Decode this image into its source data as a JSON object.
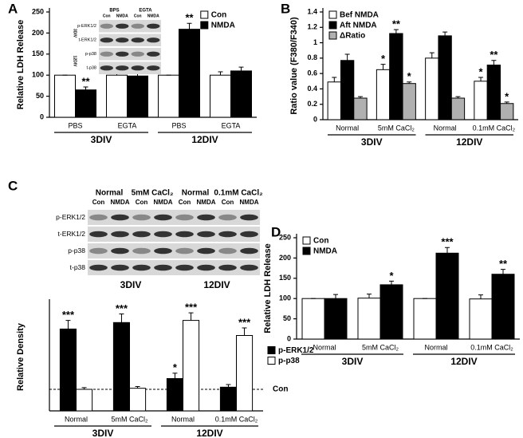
{
  "chart_data": [
    {
      "panel": "A",
      "type": "bar",
      "y_label": "Relative LDH Release",
      "categories": [
        "PBS",
        "EGTA",
        "PBS",
        "EGTA"
      ],
      "group_labels": [
        "3DIV",
        "12DIV"
      ],
      "series": [
        {
          "name": "Con",
          "color": "#ffffff",
          "values": [
            100,
            100,
            100,
            100
          ],
          "errors": [
            0,
            8,
            0,
            8
          ],
          "stars": [
            null,
            null,
            null,
            null
          ]
        },
        {
          "name": "NMDA",
          "color": "#000000",
          "values": [
            65,
            98,
            209,
            110
          ],
          "errors": [
            7,
            8,
            14,
            9
          ],
          "stars": [
            "**",
            null,
            "**",
            null
          ]
        }
      ],
      "ylim": [
        0,
        250
      ],
      "yticks": [
        0,
        50,
        100,
        150,
        200,
        250
      ],
      "legend": "upper right",
      "blot": {
        "column_headers": [
          "BPS",
          "EGTA"
        ],
        "lane_labels": [
          "Con",
          "NMDA",
          "Con",
          "NMDA"
        ],
        "row_labels": [
          "p-ERK1/2",
          "t-ERK1/2",
          "p-p38",
          "t-p38"
        ],
        "side_labels": [
          "3DIV",
          "12DIV"
        ]
      }
    },
    {
      "panel": "B",
      "type": "bar",
      "y_label": "Ratio value (F380/F340)",
      "categories": [
        "Normal",
        "5mM CaCl₂",
        "Normal",
        "0.1mM CaCl₂"
      ],
      "group_labels": [
        "3DIV",
        "12DIV"
      ],
      "series": [
        {
          "name": "Bef NMDA",
          "color": "#ffffff",
          "values": [
            0.49,
            0.65,
            0.8,
            0.5
          ],
          "errors": [
            0.06,
            0.07,
            0.07,
            0.05
          ],
          "stars": [
            null,
            "*",
            null,
            "*"
          ]
        },
        {
          "name": "Aft NMDA",
          "color": "#000000",
          "values": [
            0.77,
            1.12,
            1.09,
            0.71
          ],
          "errors": [
            0.08,
            0.05,
            0.05,
            0.06
          ],
          "stars": [
            null,
            "**",
            null,
            "**"
          ]
        },
        {
          "name": "ΔRatio",
          "color": "#b0b0b0",
          "values": [
            0.28,
            0.47,
            0.28,
            0.21
          ],
          "errors": [
            0.02,
            0.02,
            0.02,
            0.02
          ],
          "stars": [
            null,
            "*",
            null,
            "*"
          ]
        }
      ],
      "ylim": [
        0,
        1.4
      ],
      "yticks": [
        0,
        0.2,
        0.4,
        0.6,
        0.8,
        1,
        1.2,
        1.4
      ],
      "legend": "upper left"
    },
    {
      "panel": "C",
      "type": "bar",
      "y_label": "Relative Density",
      "categories": [
        "Normal",
        "5mM CaCl₂",
        "Normal",
        "0.1mM CaCl₂"
      ],
      "group_labels": [
        "3DIV",
        "12DIV"
      ],
      "series": [
        {
          "name": "p-ERK1/2",
          "color": "#000000",
          "values": [
            3.8,
            4.1,
            1.5,
            1.1
          ],
          "errors": [
            0.4,
            0.4,
            0.25,
            0.12
          ],
          "stars": [
            "***",
            "***",
            "*",
            null
          ]
        },
        {
          "name": "p-p38",
          "color": "#ffffff",
          "values": [
            1.0,
            1.05,
            4.2,
            3.5
          ],
          "errors": [
            0.08,
            0.08,
            0.35,
            0.35
          ],
          "stars": [
            null,
            null,
            "***",
            "***"
          ]
        }
      ],
      "ylim": [
        0,
        5
      ],
      "legend": "center right",
      "reference_line": {
        "value": 1,
        "label": "Con"
      },
      "blot": {
        "column_headers": [
          "Normal",
          "5mM CaCl₂",
          "Normal",
          "0.1mM CaCl₂"
        ],
        "lane_labels": [
          "Con",
          "NMDA",
          "Con",
          "NMDA",
          "Con",
          "NMDA",
          "Con",
          "NMDA"
        ],
        "row_labels": [
          "p-ERK1/2",
          "t-ERK1/2",
          "p-p38",
          "t-p38"
        ],
        "side_labels": [
          "3DIV",
          "12DIV"
        ]
      }
    },
    {
      "panel": "D",
      "type": "bar",
      "y_label": "Relative LDH Release",
      "categories": [
        "Normal",
        "5mM CaCl₂",
        "Normal",
        "0.1mM CaCl₂"
      ],
      "group_labels": [
        "3DIV",
        "12DIV"
      ],
      "series": [
        {
          "name": "Con",
          "color": "#ffffff",
          "values": [
            100,
            101,
            100,
            99
          ],
          "errors": [
            0,
            10,
            0,
            10
          ],
          "stars": [
            null,
            null,
            null,
            null
          ]
        },
        {
          "name": "NMDA",
          "color": "#000000",
          "values": [
            100,
            134,
            212,
            160
          ],
          "errors": [
            10,
            9,
            14,
            12
          ],
          "stars": [
            null,
            "*",
            "***",
            "**"
          ]
        }
      ],
      "ylim": [
        0,
        250
      ],
      "yticks": [
        0,
        50,
        100,
        150,
        200,
        250
      ],
      "legend": "upper left"
    }
  ]
}
